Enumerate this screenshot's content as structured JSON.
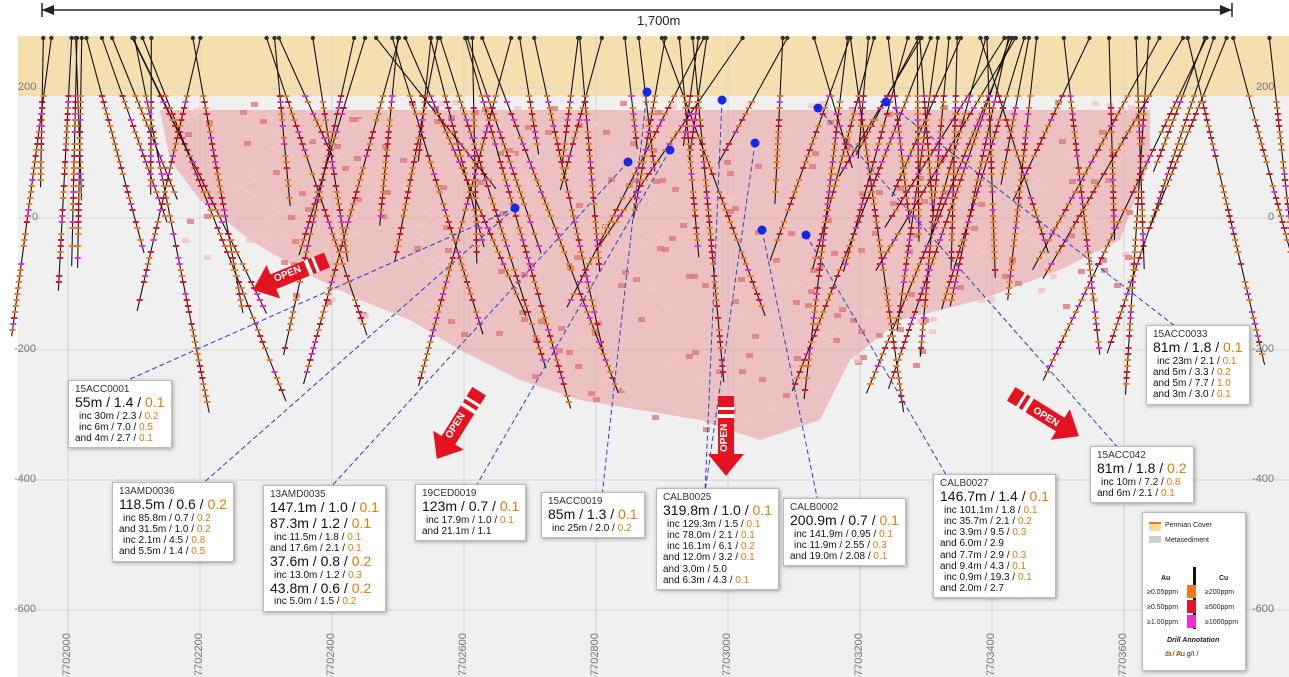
{
  "scale_bar": {
    "label": "1,700m"
  },
  "elevation_ticks": [
    {
      "value": "200",
      "y": 88
    },
    {
      "value": "0",
      "y": 218
    },
    {
      "value": "-200",
      "y": 350
    },
    {
      "value": "-400",
      "y": 480
    },
    {
      "value": "-600",
      "y": 610
    }
  ],
  "northing_ticks": [
    "7702000",
    "7702200",
    "7702400",
    "7702600",
    "7702800",
    "7703000",
    "7703200",
    "7703400",
    "7703600"
  ],
  "open_labels": [
    "OPEN",
    "OPEN",
    "OPEN",
    "OPEN"
  ],
  "callouts": [
    {
      "id": "15ACC0001",
      "lines": [
        {
          "t": "55m / 1.4 / ",
          "cu": "0.1",
          "size": "big"
        },
        {
          "t": "inc 30m / 2.3 / ",
          "cu": "0.2",
          "size": "sm"
        },
        {
          "t": "inc 6m / 7.0 / ",
          "cu": "0.5",
          "size": "sm"
        },
        {
          "t": "and 4m / 2.7 / ",
          "cu": "0.1",
          "size": "sm"
        }
      ]
    },
    {
      "id": "13AMD0036",
      "lines": [
        {
          "t": "118.5m / 0.6 / ",
          "cu": "0.2",
          "size": "big"
        },
        {
          "t": "inc 85.8m / 0.7 / ",
          "cu": "0.2",
          "size": "sm"
        },
        {
          "t": "and 31.5m / 1.0 / ",
          "cu": "0.2",
          "size": "sm"
        },
        {
          "t": "inc 2.1m / 4.5 / ",
          "cu": "0.8",
          "size": "sm"
        },
        {
          "t": "and 5.5m / 1.4 / ",
          "cu": "0.5",
          "size": "sm"
        }
      ]
    },
    {
      "id": "13AMD0035",
      "lines": [
        {
          "t": "147.1m / 1.0 / ",
          "cu": "0.1",
          "size": "big"
        },
        {
          "t": "87.3m / 1.2 / ",
          "cu": "0.1",
          "size": "big"
        },
        {
          "t": "inc 11.5m / 1.8 / ",
          "cu": "0.1",
          "size": "sm"
        },
        {
          "t": "and 17.6m / 2.1 / ",
          "cu": "0.1",
          "size": "sm"
        },
        {
          "t": "37.6m / 0.8 / ",
          "cu": "0.2",
          "size": "big"
        },
        {
          "t": "inc 13.0m / 1.2 / ",
          "cu": "0.3",
          "size": "sm"
        },
        {
          "t": "43.8m / 0.6 / ",
          "cu": "0.2",
          "size": "big"
        },
        {
          "t": "inc 5.0m / 1.5 / ",
          "cu": "0.2",
          "size": "sm"
        }
      ]
    },
    {
      "id": "19CED0019",
      "lines": [
        {
          "t": "123m / 0.7 / ",
          "cu": "0.1",
          "size": "big"
        },
        {
          "t": "inc 17.9m / 1.0 / ",
          "cu": "0.1",
          "size": "sm"
        },
        {
          "t": "and 21.1m / 1.1",
          "cu": "",
          "size": "sm"
        }
      ]
    },
    {
      "id": "15ACC0019",
      "lines": [
        {
          "t": "85m / 1.3 / ",
          "cu": "0.1",
          "size": "big"
        },
        {
          "t": "inc 25m / 2.0 / ",
          "cu": "0.2",
          "size": "sm"
        }
      ]
    },
    {
      "id": "CALB0025",
      "lines": [
        {
          "t": "319.8m / 1.0 / ",
          "cu": "0.1",
          "size": "big"
        },
        {
          "t": "inc 129.3m / 1.5 / ",
          "cu": "0.1",
          "size": "sm"
        },
        {
          "t": "inc 78.0m / 2.1 / ",
          "cu": "0.1",
          "size": "sm"
        },
        {
          "t": "inc 16.1m / 6.1 / ",
          "cu": "0.2",
          "size": "sm"
        },
        {
          "t": "and 12.0m / 3.2 / ",
          "cu": "0.1",
          "size": "sm"
        },
        {
          "t": "and 3.0m / 5.0",
          "cu": "",
          "size": "sm"
        },
        {
          "t": "and 6.3m / 4.3 / ",
          "cu": "0.1",
          "size": "sm"
        }
      ]
    },
    {
      "id": "CALB0002",
      "lines": [
        {
          "t": "200.9m / 0.7 / ",
          "cu": "0.1",
          "size": "big"
        },
        {
          "t": "inc 141.9m / 0.95 / ",
          "cu": "0.1",
          "size": "sm"
        },
        {
          "t": "inc 11.9m / 2.55 / ",
          "cu": "0.3",
          "size": "sm"
        },
        {
          "t": "and 19.0m / 2.08 / ",
          "cu": "0.1",
          "size": "sm"
        }
      ]
    },
    {
      "id": "CALB0027",
      "lines": [
        {
          "t": "146.7m / 1.4 / ",
          "cu": "0.1",
          "size": "big"
        },
        {
          "t": "inc 101.1m / 1.8 / ",
          "cu": "0.1",
          "size": "sm"
        },
        {
          "t": "inc 35.7m / 2.1 / ",
          "cu": "0.2",
          "size": "sm"
        },
        {
          "t": "inc 3.9m / 9.5 / ",
          "cu": "0.3",
          "size": "sm"
        },
        {
          "t": "and 6.0m / 2.9",
          "cu": "",
          "size": "sm"
        },
        {
          "t": "and 7.7m / 2.9 / ",
          "cu": "0.3",
          "size": "sm"
        },
        {
          "t": "and 9.4m / 4.3 / ",
          "cu": "0.1",
          "size": "sm"
        },
        {
          "t": "inc 0.9m / 19.3 / ",
          "cu": "0.1",
          "size": "sm"
        },
        {
          "t": "and 2.0m / 2.7",
          "cu": "",
          "size": "sm"
        }
      ]
    },
    {
      "id": "15ACC042",
      "lines": [
        {
          "t": "81m / 1.8 / ",
          "cu": "0.2",
          "size": "big"
        },
        {
          "t": "inc 10m / 7.2 / ",
          "cu": "0.8",
          "size": "sm"
        },
        {
          "t": "and 6m / 2.1 / ",
          "cu": "0.1",
          "size": "sm"
        }
      ]
    },
    {
      "id": "15ACC0033",
      "lines": [
        {
          "t": "81m / 1.8 / ",
          "cu": "0.1",
          "size": "big"
        },
        {
          "t": "inc 23m / 2.1 / ",
          "cu": "0.1",
          "size": "sm"
        },
        {
          "t": "and 5m / 3.3 / ",
          "cu": "0.2",
          "size": "sm"
        },
        {
          "t": "and 5m / 7.7 / ",
          "cu": "1.0",
          "size": "sm"
        },
        {
          "t": "and 3m / 3.0 / ",
          "cu": "0.1",
          "size": "sm"
        }
      ]
    }
  ],
  "legend": {
    "cover_label": "Permian Cover",
    "metasediment_label": "Metasediment",
    "au_title": "Au",
    "cu_title": "Cu",
    "au_rows": [
      "≥0.05ppm",
      "≥0.50ppm",
      "≥1.00ppm"
    ],
    "cu_rows": [
      "≥200ppm",
      "≥500ppm",
      "≥1000ppm"
    ],
    "annotation_title": "Drill Annotation",
    "annotation_text": "m / Au g/t / ",
    "annotation_cu": "Cu %",
    "colors": {
      "cover": "#f5d9a5",
      "metasediment": "#cfcfcf",
      "orange": "#f07a1a",
      "red": "#e3142a",
      "magenta": "#f02ad8"
    }
  },
  "colors": {
    "cover": "#f6dfae",
    "plot_bg": "#ececec",
    "mineral": "#e79a9a",
    "leader": "#2d3fd0",
    "pierce": "#1428e8",
    "arrow": "#e3141f"
  }
}
